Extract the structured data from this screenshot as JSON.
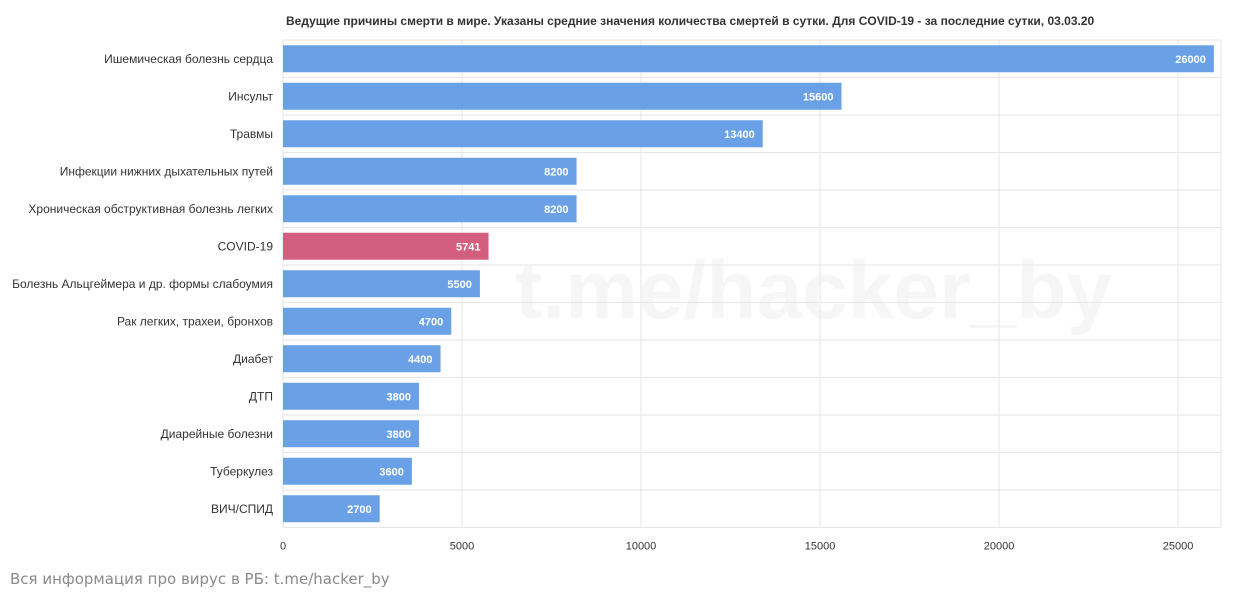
{
  "title": "Ведущие причины смерти в мире. Указаны средние значения количества смертей в сутки. Для COVID-19 - за последние сутки, 03.03.20",
  "footer": "Вся информация про вирус в РБ: t.me/hacker_by",
  "watermark": "t.me/hacker_by",
  "colors": {
    "bar": "#6aa1e6",
    "highlight": "#d35e7e",
    "grid": "#e6e6e6",
    "axis_text": "#333333",
    "label_text": "#ffffff"
  },
  "chart_data": {
    "type": "bar",
    "orientation": "horizontal",
    "title": "Ведущие причины смерти в мире. Указаны средние значения количества смертей в сутки. Для COVID-19 - за последние сутки, 03.03.20",
    "xlabel": "",
    "ylabel": "",
    "categories": [
      "Ишемическая болезнь сердца",
      "Инсульт",
      "Травмы",
      "Инфекции нижних дыхательных путей",
      "Хроническая обструктивная болезнь легких",
      "COVID-19",
      "Болезнь Альцгеймера и др. формы слабоумия",
      "Рак легких, трахеи, бронхов",
      "Диабет",
      "ДТП",
      "Диарейные болезни",
      "Туберкулез",
      "ВИЧ/СПИД"
    ],
    "values": [
      26000,
      15600,
      13400,
      8200,
      8200,
      5741,
      5500,
      4700,
      4400,
      3800,
      3800,
      3600,
      2700
    ],
    "highlight_category": "COVID-19",
    "xlim": [
      0,
      26200
    ],
    "x_ticks": [
      0,
      5000,
      10000,
      15000,
      20000,
      25000
    ],
    "grid": true,
    "data_labels": true,
    "legend": "none"
  }
}
